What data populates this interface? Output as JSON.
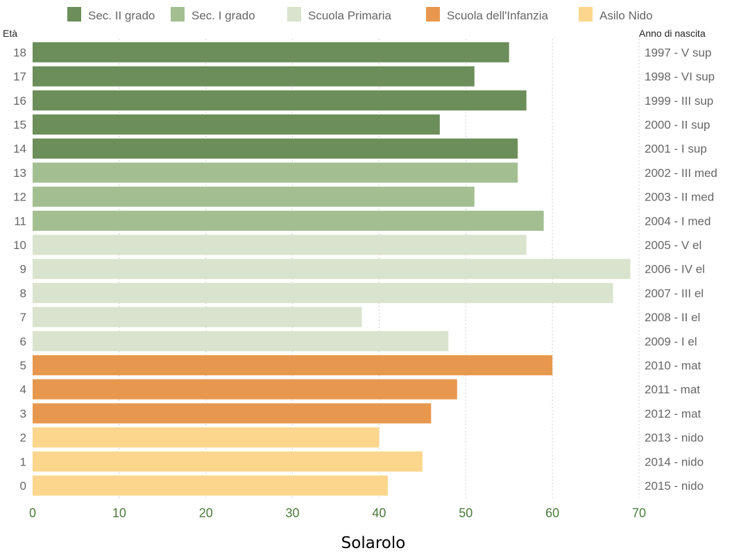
{
  "chart_data": {
    "type": "bar",
    "orientation": "horizontal",
    "title": "Solarolo",
    "left_axis_title": "Età",
    "right_axis_title": "Anno di nascita",
    "xlim": [
      0,
      70
    ],
    "x_ticks": [
      0,
      10,
      20,
      30,
      40,
      50,
      60,
      70
    ],
    "x_tick_color": "#4a7a3a",
    "grid": "vertical dotted",
    "legend_position": "top",
    "legend": [
      {
        "key": "sec2",
        "label": "Sec. II grado",
        "color": "#6b8e5a"
      },
      {
        "key": "sec1",
        "label": "Sec. I grado",
        "color": "#a3bf92"
      },
      {
        "key": "prim",
        "label": "Scuola Primaria",
        "color": "#d9e3cd"
      },
      {
        "key": "inf",
        "label": "Scuola dell'Infanzia",
        "color": "#e8984e"
      },
      {
        "key": "nido",
        "label": "Asilo Nido",
        "color": "#fcd68c"
      }
    ],
    "bars": [
      {
        "age": "18",
        "birth": "1997 - V sup",
        "value": 55,
        "group": "sec2"
      },
      {
        "age": "17",
        "birth": "1998 - VI sup",
        "value": 51,
        "group": "sec2"
      },
      {
        "age": "16",
        "birth": "1999 - III sup",
        "value": 57,
        "group": "sec2"
      },
      {
        "age": "15",
        "birth": "2000 - II sup",
        "value": 47,
        "group": "sec2"
      },
      {
        "age": "14",
        "birth": "2001 - I sup",
        "value": 56,
        "group": "sec2"
      },
      {
        "age": "13",
        "birth": "2002 - III med",
        "value": 56,
        "group": "sec1"
      },
      {
        "age": "12",
        "birth": "2003 - II med",
        "value": 51,
        "group": "sec1"
      },
      {
        "age": "11",
        "birth": "2004 - I med",
        "value": 59,
        "group": "sec1"
      },
      {
        "age": "10",
        "birth": "2005 - V el",
        "value": 57,
        "group": "prim"
      },
      {
        "age": "9",
        "birth": "2006 - IV el",
        "value": 69,
        "group": "prim"
      },
      {
        "age": "8",
        "birth": "2007 - III el",
        "value": 67,
        "group": "prim"
      },
      {
        "age": "7",
        "birth": "2008 - II el",
        "value": 38,
        "group": "prim"
      },
      {
        "age": "6",
        "birth": "2009 - I el",
        "value": 48,
        "group": "prim"
      },
      {
        "age": "5",
        "birth": "2010 - mat",
        "value": 60,
        "group": "inf"
      },
      {
        "age": "4",
        "birth": "2011 - mat",
        "value": 49,
        "group": "inf"
      },
      {
        "age": "3",
        "birth": "2012 - mat",
        "value": 46,
        "group": "inf"
      },
      {
        "age": "2",
        "birth": "2013 - nido",
        "value": 40,
        "group": "nido"
      },
      {
        "age": "1",
        "birth": "2014 - nido",
        "value": 45,
        "group": "nido"
      },
      {
        "age": "0",
        "birth": "2015 - nido",
        "value": 41,
        "group": "nido"
      }
    ]
  }
}
